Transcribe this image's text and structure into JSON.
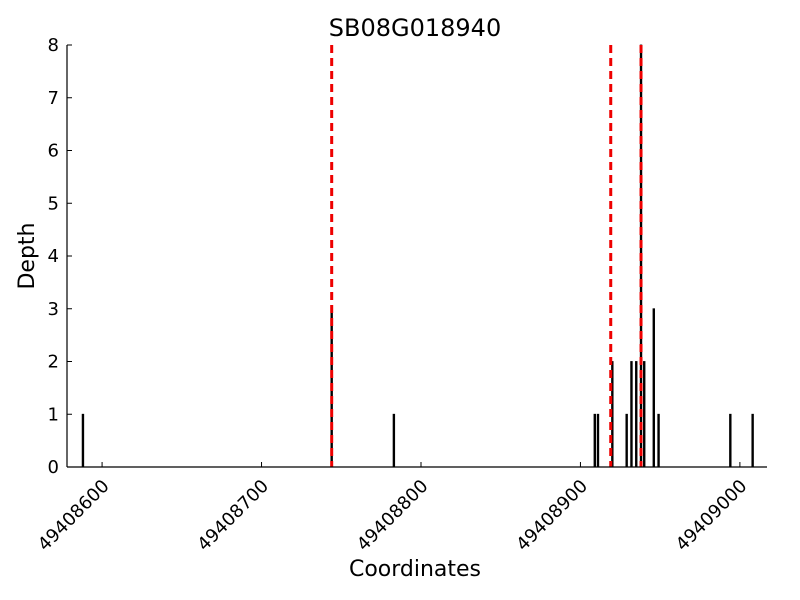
{
  "chart_data": {
    "type": "bar",
    "title": "SB08G018940",
    "xlabel": "Coordinates",
    "ylabel": "Depth",
    "x": [
      49408588,
      49408744,
      49408783,
      49408909,
      49408911,
      49408920,
      49408929,
      49408932,
      49408935,
      49408938,
      49408940,
      49408946,
      49408949,
      49408994,
      49409008
    ],
    "values": [
      1,
      3,
      1,
      1,
      1,
      2,
      1,
      2,
      2,
      8,
      2,
      3,
      1,
      1,
      1
    ],
    "color": "#000000",
    "vlines": [
      49408744,
      49408919,
      49408938
    ],
    "vline_color": "#ee0000",
    "xlim": [
      49408578,
      49409017
    ],
    "xticks": [
      49408600,
      49408700,
      49408800,
      49408900,
      49409000
    ],
    "ylim": [
      0,
      8
    ],
    "yticks": [
      0,
      1,
      2,
      3,
      4,
      5,
      6,
      7,
      8
    ]
  }
}
